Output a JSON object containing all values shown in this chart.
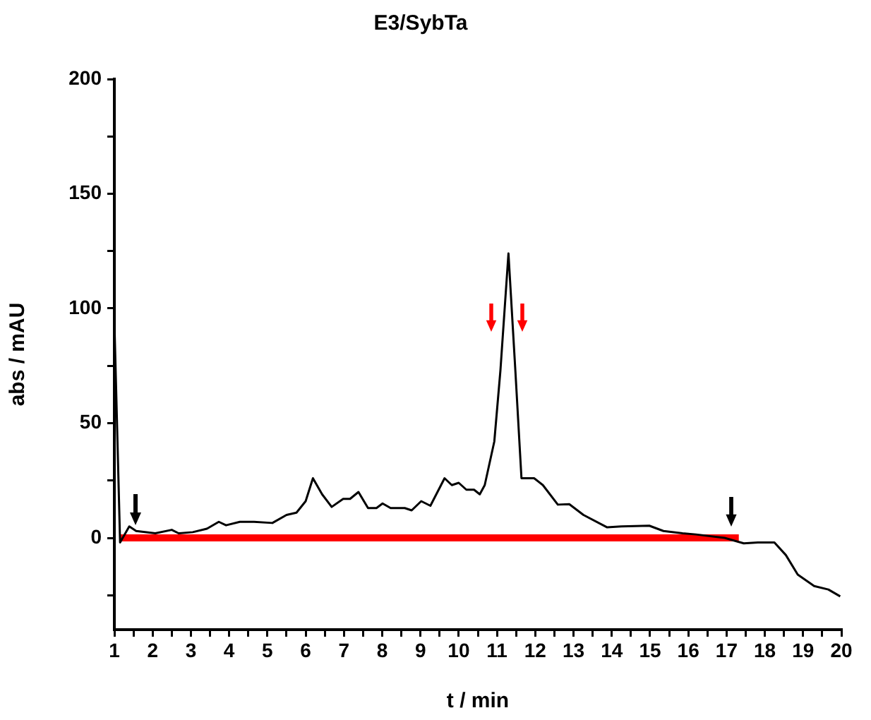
{
  "chart_data": {
    "type": "line",
    "title": "E3/SybTa",
    "xlabel": "t / min",
    "ylabel": "abs / mAU",
    "xlim": [
      1,
      20
    ],
    "xticks": [
      1,
      {
        "value": 1.5,
        "label": null
      },
      2,
      {
        "value": 2.5,
        "label": null
      },
      3,
      {
        "value": 3.5,
        "label": null
      },
      4,
      {
        "value": 4.5,
        "label": null
      },
      5,
      {
        "value": 5.5,
        "label": null
      },
      6,
      {
        "value": 6.5,
        "label": null
      },
      7,
      {
        "value": 7.5,
        "label": null
      },
      8,
      {
        "value": 8.5,
        "label": null
      },
      9,
      {
        "value": 9.5,
        "label": null
      },
      10,
      {
        "value": 10.5,
        "label": null
      },
      11,
      {
        "value": 11.5,
        "label": null
      },
      12,
      {
        "value": 12.5,
        "label": null
      },
      13,
      {
        "value": 13.5,
        "label": null
      },
      14,
      {
        "value": 14.5,
        "label": null
      },
      15,
      {
        "value": 15.5,
        "label": null
      },
      16,
      {
        "value": 16.5,
        "label": null
      },
      17,
      {
        "value": 17.5,
        "label": null
      },
      18,
      {
        "value": 18.5,
        "label": null
      },
      19,
      {
        "value": 19.5,
        "label": null
      },
      20
    ],
    "ylim": [
      -40,
      200
    ],
    "yticks": [
      {
        "value": -25,
        "label": null
      },
      0,
      {
        "value": 25,
        "label": null
      },
      50,
      {
        "value": 75,
        "label": null
      },
      100,
      {
        "value": 125,
        "label": null
      },
      150,
      {
        "value": 175,
        "label": null
      },
      200
    ],
    "grid": false,
    "legend": false,
    "marker": "none",
    "line_style": "solid",
    "series": [
      {
        "color": "#000000",
        "x": [
          1.0,
          1.15,
          1.39,
          1.57,
          2.07,
          2.5,
          2.68,
          3.05,
          3.42,
          3.73,
          3.92,
          4.28,
          4.65,
          5.13,
          5.5,
          5.76,
          6.0,
          6.19,
          6.43,
          6.68,
          6.98,
          7.16,
          7.38,
          7.63,
          7.85,
          8.01,
          8.22,
          8.59,
          8.77,
          9.02,
          9.26,
          9.63,
          9.82,
          10.0,
          10.2,
          10.4,
          10.55,
          10.68,
          10.93,
          11.09,
          11.3,
          11.48,
          11.64,
          11.97,
          12.2,
          12.59,
          12.89,
          13.26,
          13.88,
          14.25,
          14.98,
          15.35,
          15.85,
          16.2,
          16.95,
          17.45,
          17.82,
          18.25,
          18.55,
          18.86,
          19.29,
          19.66,
          19.97
        ],
        "values": [
          95,
          -2,
          5,
          3,
          2,
          3.5,
          2,
          2.5,
          4,
          7,
          5.5,
          7,
          7,
          6.5,
          10,
          11,
          16,
          26,
          19,
          13.5,
          17,
          17,
          20,
          13,
          13,
          15,
          13,
          13,
          12,
          16,
          14,
          26,
          23,
          24,
          21,
          21,
          19,
          23,
          42,
          73,
          124,
          73,
          26,
          26,
          23,
          14.5,
          14.7,
          10,
          4.6,
          5,
          5.3,
          3,
          2,
          1.5,
          0,
          -2.4,
          -2,
          -2,
          -7.5,
          -16,
          -21,
          -22.5,
          -25.5
        ]
      },
      {
        "color": "#ff0000",
        "x": [
          1.15,
          17.32
        ],
        "values": [
          0,
          0
        ]
      }
    ]
  }
}
